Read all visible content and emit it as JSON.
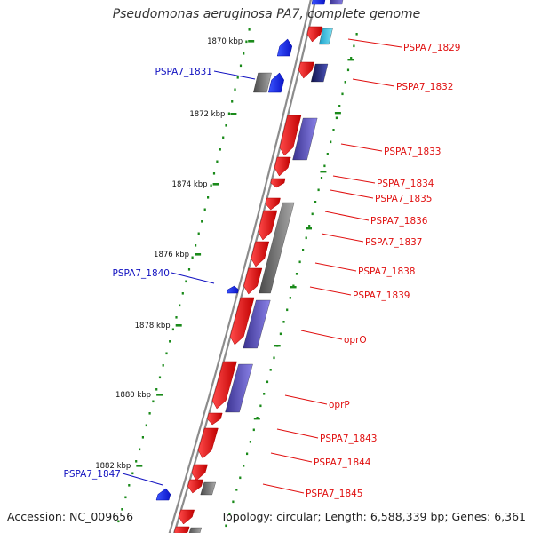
{
  "title": "Pseudomonas aeruginosa PA7, complete genome",
  "footer": {
    "accession": "Accession: NC_009656",
    "summary": "Topology: circular; Length: 6,588,339 bp; Genes: 6,361"
  },
  "colors": {
    "backbone": "#8c8c8c",
    "forward_gene": "#e8141d",
    "reverse_gene": "#1a26e6",
    "cds_blue": "#4a3fa8",
    "cds_gray": "#6a6a6a",
    "cds_cyan": "#2fb6d8",
    "tick_green": "#1a8a1a",
    "label_red": "#e01010",
    "label_blue": "#1010c0"
  },
  "ruler": [
    {
      "text": "1870 kbp"
    },
    {
      "text": "1872 kbp"
    },
    {
      "text": "1874 kbp"
    },
    {
      "text": "1876 kbp"
    },
    {
      "text": "1878 kbp"
    },
    {
      "text": "1880 kbp"
    },
    {
      "text": "1882 kbp"
    }
  ],
  "forward_labels": [
    {
      "text": "PSPA7_1829"
    },
    {
      "text": "PSPA7_1832"
    },
    {
      "text": "PSPA7_1833"
    },
    {
      "text": "PSPA7_1834"
    },
    {
      "text": "PSPA7_1835"
    },
    {
      "text": "PSPA7_1836"
    },
    {
      "text": "PSPA7_1837"
    },
    {
      "text": "PSPA7_1838"
    },
    {
      "text": "PSPA7_1839"
    },
    {
      "text": "oprO"
    },
    {
      "text": "oprP"
    },
    {
      "text": "PSPA7_1843"
    },
    {
      "text": "PSPA7_1844"
    },
    {
      "text": "PSPA7_1845"
    }
  ],
  "reverse_labels": [
    {
      "text": "PSPA7_1831"
    },
    {
      "text": "PSPA7_1840"
    },
    {
      "text": "PSPA7_1847"
    }
  ]
}
